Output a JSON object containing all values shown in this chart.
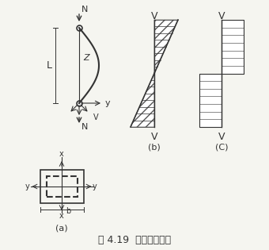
{
  "title": "图 4.19  剪力计算简图",
  "bg_color": "#f5f5f0",
  "line_color": "#333333",
  "hatch_color": "#555555",
  "label_b": "(b)",
  "label_c": "(C)",
  "label_a": "(a)"
}
